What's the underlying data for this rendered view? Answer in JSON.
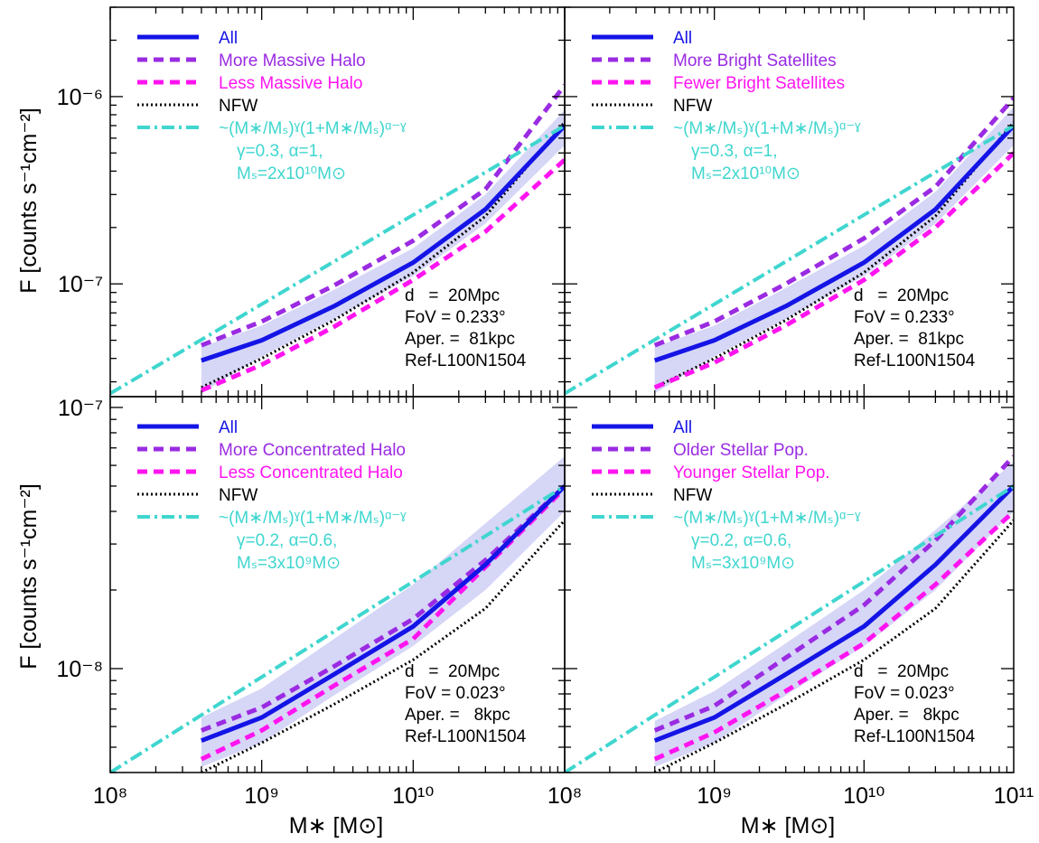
{
  "axis_labels": {
    "ylabel_top": "F [counts s⁻¹cm⁻²]",
    "ylabel_bottom": "F [counts s⁻¹cm⁻²]",
    "xlabel_left": "M∗ [M⊙]",
    "xlabel_right": "M∗ [M⊙]"
  },
  "colors": {
    "all": "#1414e6",
    "more": "#9a2be2",
    "less": "#ff14f0",
    "nfw": "#000000",
    "fit": "#3fd6cf",
    "band": "#c8c8f4"
  },
  "chart_data": [
    {
      "type": "line",
      "panel": "top-left",
      "x_scale": "log",
      "y_scale": "log",
      "xlim": [
        100000000.0,
        100000000000.0
      ],
      "ylim": [
        2.5e-08,
        3e-06
      ],
      "x_ticks": [
        100000000.0,
        1000000000.0,
        10000000000.0,
        100000000000.0
      ],
      "y_ticks": [
        1e-07,
        1e-06
      ],
      "y_tick_labels": [
        "10⁻⁷",
        "10⁻⁶"
      ],
      "legend": [
        "All",
        "More Massive Halo",
        "Less Massive Halo",
        "NFW",
        "~(M∗/Mₛ)ˠ(1+M∗/Mₛ)ᵅ⁻ˠ"
      ],
      "fit_params": [
        "γ=0.3, α=1,",
        "Mₛ=2x10¹⁰M⊙"
      ],
      "annotations": [
        "d   =  20Mpc",
        "FoV = 0.233°",
        "Aper. =  81kpc",
        "Ref-L100N1504"
      ],
      "x": [
        400000000.0,
        1000000000.0,
        3000000000.0,
        10000000000.0,
        30000000000.0,
        100000000000.0
      ],
      "series": [
        {
          "name": "All",
          "values": [
            3.9e-08,
            5e-08,
            7.6e-08,
            1.3e-07,
            2.5e-07,
            7e-07
          ]
        },
        {
          "name": "More Massive Halo",
          "values": [
            4.7e-08,
            6.3e-08,
            9.8e-08,
            1.7e-07,
            3.2e-07,
            1.15e-06
          ]
        },
        {
          "name": "Less Massive Halo",
          "values": [
            2.7e-08,
            3.7e-08,
            5.9e-08,
            1.05e-07,
            1.9e-07,
            4.6e-07
          ]
        },
        {
          "name": "NFW",
          "values": [
            2.8e-08,
            4e-08,
            6.4e-08,
            1.15e-07,
            2.3e-07,
            7.3e-07
          ]
        },
        {
          "name": "fit",
          "x": [
            100000000.0,
            100000000000.0
          ],
          "values": [
            2.6e-08,
            7e-07
          ]
        }
      ],
      "band": {
        "x": [
          400000000.0,
          1000000000.0,
          3000000000.0,
          10000000000.0,
          30000000000.0,
          100000000000.0
        ],
        "low": [
          2.6e-08,
          4.1e-08,
          6.5e-08,
          1.1e-07,
          2.1e-07,
          5.5e-07
        ],
        "high": [
          4.6e-08,
          6e-08,
          9.3e-08,
          1.55e-07,
          3e-07,
          8.5e-07
        ]
      }
    },
    {
      "type": "line",
      "panel": "top-right",
      "x_scale": "log",
      "y_scale": "log",
      "xlim": [
        100000000.0,
        100000000000.0
      ],
      "ylim": [
        2.5e-08,
        3e-06
      ],
      "x_ticks": [
        100000000.0,
        1000000000.0,
        10000000000.0,
        100000000000.0
      ],
      "legend": [
        "All",
        "More Bright Satellites",
        "Fewer Bright Satellites",
        "NFW",
        "~(M∗/Mₛ)ˠ(1+M∗/Mₛ)ᵅ⁻ˠ"
      ],
      "fit_params": [
        "γ=0.3, α=1,",
        "Mₛ=2x10¹⁰M⊙"
      ],
      "annotations": [
        "d   =  20Mpc",
        "FoV = 0.233°",
        "Aper. =  81kpc",
        "Ref-L100N1504"
      ],
      "x": [
        400000000.0,
        1000000000.0,
        3000000000.0,
        10000000000.0,
        30000000000.0,
        100000000000.0
      ],
      "series": [
        {
          "name": "All",
          "values": [
            3.9e-08,
            5e-08,
            7.6e-08,
            1.3e-07,
            2.5e-07,
            7e-07
          ]
        },
        {
          "name": "More Bright Satellites",
          "values": [
            4.7e-08,
            6.3e-08,
            1e-07,
            1.75e-07,
            3.3e-07,
            9.8e-07
          ]
        },
        {
          "name": "Fewer Bright Satellites",
          "values": [
            2.8e-08,
            3.8e-08,
            6e-08,
            1.05e-07,
            2e-07,
            5e-07
          ]
        },
        {
          "name": "NFW",
          "values": [
            2.8e-08,
            4e-08,
            6.4e-08,
            1.15e-07,
            2.3e-07,
            7.3e-07
          ]
        },
        {
          "name": "fit",
          "x": [
            100000000.0,
            100000000000.0
          ],
          "values": [
            2.6e-08,
            7e-07
          ]
        }
      ],
      "band": {
        "x": [
          400000000.0,
          1000000000.0,
          3000000000.0,
          10000000000.0,
          30000000000.0,
          100000000000.0
        ],
        "low": [
          2.6e-08,
          4.1e-08,
          6.5e-08,
          1.1e-07,
          2.1e-07,
          5.5e-07
        ],
        "high": [
          4.6e-08,
          6e-08,
          9.5e-08,
          1.6e-07,
          3.1e-07,
          8.8e-07
        ]
      }
    },
    {
      "type": "line",
      "panel": "bottom-left",
      "x_scale": "log",
      "y_scale": "log",
      "xlim": [
        100000000.0,
        100000000000.0
      ],
      "ylim": [
        4e-09,
        1.1e-07
      ],
      "x_ticks": [
        100000000.0,
        1000000000.0,
        10000000000.0,
        100000000000.0
      ],
      "x_tick_labels": [
        "10⁸",
        "10⁹",
        "10¹⁰",
        ""
      ],
      "y_ticks": [
        1e-08,
        1e-07
      ],
      "y_tick_labels": [
        "10⁻⁸",
        "10⁻⁷"
      ],
      "legend": [
        "All",
        "More Concentrated Halo",
        "Less Concentrated Halo",
        "NFW",
        "~(M∗/Mₛ)ˠ(1+M∗/Mₛ)ᵅ⁻ˠ"
      ],
      "fit_params": [
        "γ=0.2, α=0.6,",
        "Mₛ=3x10⁹M⊙"
      ],
      "annotations": [
        "d   =  20Mpc",
        "FoV = 0.023°",
        "Aper. =   8kpc",
        "Ref-L100N1504"
      ],
      "x": [
        400000000.0,
        1000000000.0,
        3000000000.0,
        10000000000.0,
        30000000000.0,
        100000000000.0
      ],
      "series": [
        {
          "name": "All",
          "values": [
            5.3e-09,
            6.5e-09,
            9.5e-09,
            1.45e-08,
            2.5e-08,
            5e-08
          ]
        },
        {
          "name": "More Concentrated Halo",
          "values": [
            5.8e-09,
            7.1e-09,
            1.02e-08,
            1.55e-08,
            2.6e-08,
            5e-08
          ]
        },
        {
          "name": "Less Concentrated Halo",
          "values": [
            4.5e-09,
            5.8e-09,
            8.6e-09,
            1.3e-08,
            2.45e-08,
            4.9e-08
          ]
        },
        {
          "name": "NFW",
          "values": [
            4e-09,
            5.2e-09,
            7.3e-09,
            1.08e-08,
            1.7e-08,
            3.7e-08
          ]
        },
        {
          "name": "fit",
          "x": [
            100000000.0,
            100000000000.0
          ],
          "values": [
            4e-09,
            5e-08
          ]
        }
      ],
      "band": {
        "x": [
          400000000.0,
          1000000000.0,
          3000000000.0,
          10000000000.0,
          30000000000.0,
          100000000000.0
        ],
        "low": [
          4.2e-09,
          5.2e-09,
          7.9e-09,
          1.22e-08,
          2e-08,
          4e-08
        ],
        "high": [
          6.5e-09,
          8.4e-09,
          1.3e-08,
          2.1e-08,
          3.6e-08,
          6.5e-08
        ]
      }
    },
    {
      "type": "line",
      "panel": "bottom-right",
      "x_scale": "log",
      "y_scale": "log",
      "xlim": [
        100000000.0,
        100000000000.0
      ],
      "ylim": [
        4e-09,
        1.1e-07
      ],
      "x_ticks": [
        100000000.0,
        1000000000.0,
        10000000000.0,
        100000000000.0
      ],
      "x_tick_labels": [
        "10⁸",
        "10⁹",
        "10¹⁰",
        "10¹¹"
      ],
      "legend": [
        "All",
        "Older Stellar Pop.",
        "Younger Stellar Pop.",
        "NFW",
        "~(M∗/Mₛ)ˠ(1+M∗/Mₛ)ᵅ⁻ˠ"
      ],
      "fit_params": [
        "γ=0.2, α=0.6,",
        "Mₛ=3x10⁹M⊙"
      ],
      "annotations": [
        "d   =  20Mpc",
        "FoV = 0.023°",
        "Aper. =   8kpc",
        "Ref-L100N1504"
      ],
      "x": [
        400000000.0,
        1000000000.0,
        3000000000.0,
        10000000000.0,
        30000000000.0,
        100000000000.0
      ],
      "series": [
        {
          "name": "All",
          "values": [
            5.3e-09,
            6.5e-09,
            9.5e-09,
            1.45e-08,
            2.5e-08,
            5e-08
          ]
        },
        {
          "name": "Older Stellar Pop.",
          "values": [
            5.8e-09,
            7.2e-09,
            1.1e-08,
            1.75e-08,
            3.1e-08,
            6.5e-08
          ]
        },
        {
          "name": "Younger Stellar Pop.",
          "values": [
            4.5e-09,
            5.7e-09,
            8.2e-09,
            1.25e-08,
            2.1e-08,
            4e-08
          ]
        },
        {
          "name": "NFW",
          "values": [
            4e-09,
            5.2e-09,
            7.3e-09,
            1.08e-08,
            1.7e-08,
            3.7e-08
          ]
        },
        {
          "name": "fit",
          "x": [
            100000000.0,
            100000000000.0
          ],
          "values": [
            4e-09,
            5e-08
          ]
        }
      ],
      "band": {
        "x": [
          400000000.0,
          1000000000.0,
          3000000000.0,
          10000000000.0,
          30000000000.0,
          100000000000.0
        ],
        "low": [
          4.2e-09,
          5.2e-09,
          7.9e-09,
          1.22e-08,
          2e-08,
          4e-08
        ],
        "high": [
          6.3e-09,
          8.2e-09,
          1.25e-08,
          2e-08,
          3.4e-08,
          6.2e-08
        ]
      }
    }
  ]
}
